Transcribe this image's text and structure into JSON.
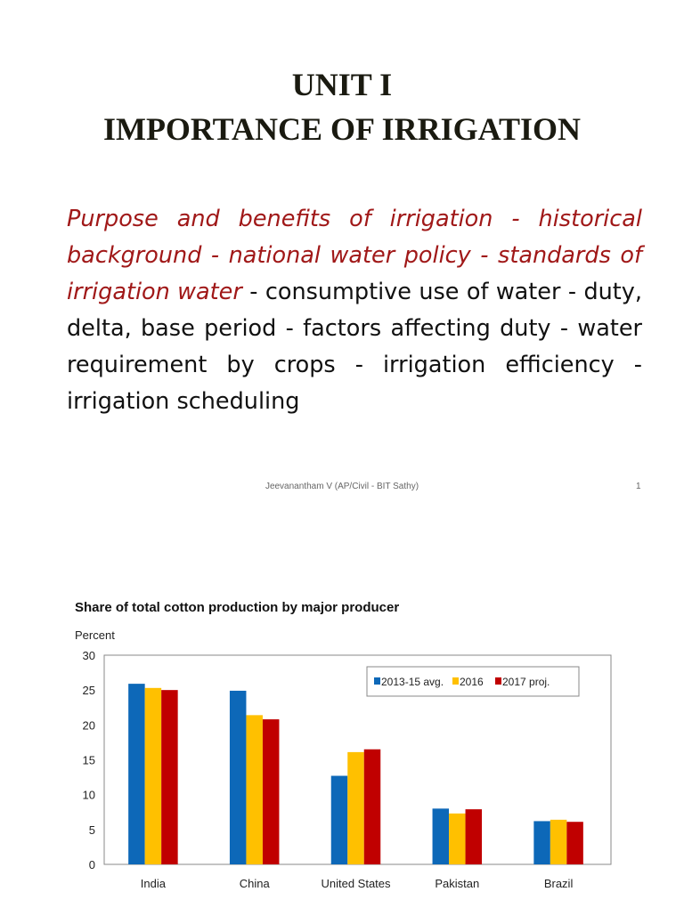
{
  "slide": {
    "title_line1": "UNIT I",
    "title_line2": "IMPORTANCE OF IRRIGATION",
    "body_highlight": "Purpose and benefits of irrigation - historical background - national water policy - standards of irrigation water",
    "body_rest": " - consumptive use of water - duty, delta, base period - factors affecting duty - water requirement by crops - irrigation efficiency - irrigation scheduling",
    "footer": "Jeevanantham V (AP/Civil - BIT Sathy)",
    "page_number": "1"
  },
  "chart_data": {
    "type": "bar",
    "title": "Share of total cotton production by major producer",
    "ylabel": "Percent",
    "xlabel": "",
    "ylim": [
      0,
      30
    ],
    "yticks": [
      0,
      5,
      10,
      15,
      20,
      25,
      30
    ],
    "categories": [
      "India",
      "China",
      "United States",
      "Pakistan",
      "Brazil"
    ],
    "series": [
      {
        "name": "2013-15 avg.",
        "color": "#0d68b8",
        "values": [
          25.9,
          24.9,
          12.7,
          8.0,
          6.2
        ]
      },
      {
        "name": "2016",
        "color": "#ffc000",
        "values": [
          25.3,
          21.4,
          16.1,
          7.3,
          6.4
        ]
      },
      {
        "name": "2017 proj.",
        "color": "#c00000",
        "values": [
          25.0,
          20.8,
          16.5,
          7.9,
          6.1
        ]
      }
    ],
    "legend": "top-right",
    "grid": false
  }
}
